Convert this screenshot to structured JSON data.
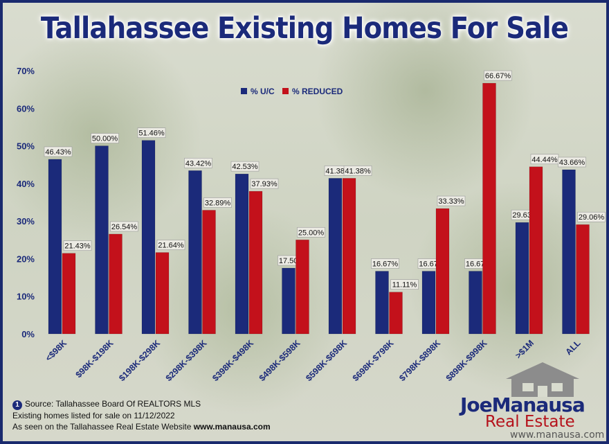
{
  "title": "Tallahassee Existing Homes For Sale",
  "legend": {
    "uc": "% U/C",
    "reduced": "% REDUCED"
  },
  "colors": {
    "uc": "#1b2a7a",
    "reduced": "#c3111b",
    "accent": "#1b2a7a"
  },
  "footer": {
    "marker": "1",
    "source": "Source: Tallahassee Board Of REALTORS MLS",
    "line2": "Existing homes listed for sale on 11/12/2022",
    "line3_prefix": "As seen on the Tallahassee Real Estate Website ",
    "link": "www.manausa.com"
  },
  "logo": {
    "brand": "JoeManausa",
    "sub": "Real Estate",
    "url": "www.manausa.com",
    "icon": "house-icon"
  },
  "chart_data": {
    "type": "bar",
    "title": "Tallahassee Existing Homes For Sale",
    "xlabel": "",
    "ylabel": "",
    "ylim": [
      0,
      70
    ],
    "yticks": [
      "0%",
      "10%",
      "20%",
      "30%",
      "40%",
      "50%",
      "60%",
      "70%"
    ],
    "legend_position": "top-left",
    "grid": false,
    "categories": [
      "<$98K",
      "$98K-$198K",
      "$198K-$298K",
      "$298K-$398K",
      "$398K-$498K",
      "$498K-$598K",
      "$598K-$698K",
      "$698K-$798K",
      "$798K-$898K",
      "$898K-$998K",
      ">$1M",
      "ALL"
    ],
    "series": [
      {
        "name": "% U/C",
        "values": [
          46.43,
          50.0,
          51.46,
          43.42,
          42.53,
          17.5,
          41.38,
          16.67,
          16.67,
          16.67,
          29.63,
          43.66
        ],
        "labels": [
          "46.43%",
          "50.00%",
          "51.46%",
          "43.42%",
          "42.53%",
          "17.50%",
          "41.38%",
          "16.67%",
          "16.67%",
          "16.67%",
          "29.63%",
          "43.66%"
        ]
      },
      {
        "name": "% REDUCED",
        "values": [
          21.43,
          26.54,
          21.64,
          32.89,
          37.93,
          25.0,
          41.38,
          11.11,
          33.33,
          66.67,
          44.44,
          29.06
        ],
        "labels": [
          "21.43%",
          "26.54%",
          "21.64%",
          "32.89%",
          "37.93%",
          "25.00%",
          "41.38%",
          "11.11%",
          "33.33%",
          "66.67%",
          "44.44%",
          "29.06%"
        ]
      }
    ]
  }
}
